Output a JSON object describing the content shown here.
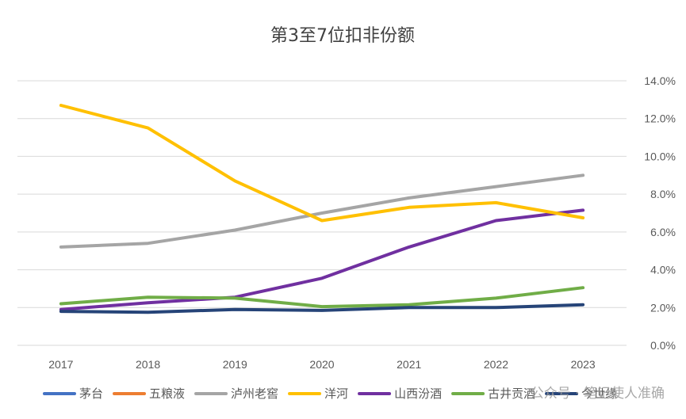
{
  "watermark": "公众号 · 笔记使人准确",
  "chart_data": {
    "type": "line",
    "title": "第3至7位扣非份额",
    "categories": [
      "2017",
      "2018",
      "2019",
      "2020",
      "2021",
      "2022",
      "2023"
    ],
    "y_axis": {
      "position": "right",
      "min": 0,
      "max": 14,
      "step": 2,
      "tick_labels": [
        "0.0%",
        "2.0%",
        "4.0%",
        "6.0%",
        "8.0%",
        "10.0%",
        "12.0%",
        "14.0%"
      ]
    },
    "grid": true,
    "legend_position": "bottom",
    "series": [
      {
        "name": "茅台",
        "color": "#4472C4",
        "values": null
      },
      {
        "name": "五粮液",
        "color": "#ED7D31",
        "values": null
      },
      {
        "name": "泸州老窖",
        "color": "#A5A5A5",
        "values": [
          5.2,
          5.4,
          6.1,
          7.0,
          7.8,
          8.4,
          9.0
        ]
      },
      {
        "name": "洋河",
        "color": "#FFC000",
        "values": [
          12.7,
          11.5,
          8.7,
          6.6,
          7.3,
          7.55,
          6.75
        ]
      },
      {
        "name": "山西汾酒",
        "color": "#7030A0",
        "values": [
          1.9,
          2.25,
          2.55,
          3.55,
          5.2,
          6.6,
          7.15
        ]
      },
      {
        "name": "古井贡酒",
        "color": "#70AD47",
        "values": [
          2.2,
          2.55,
          2.5,
          2.05,
          2.15,
          2.5,
          3.05
        ]
      },
      {
        "name": "今世缘",
        "color": "#264478",
        "values": [
          1.8,
          1.75,
          1.9,
          1.85,
          2.0,
          2.0,
          2.15
        ]
      }
    ]
  }
}
